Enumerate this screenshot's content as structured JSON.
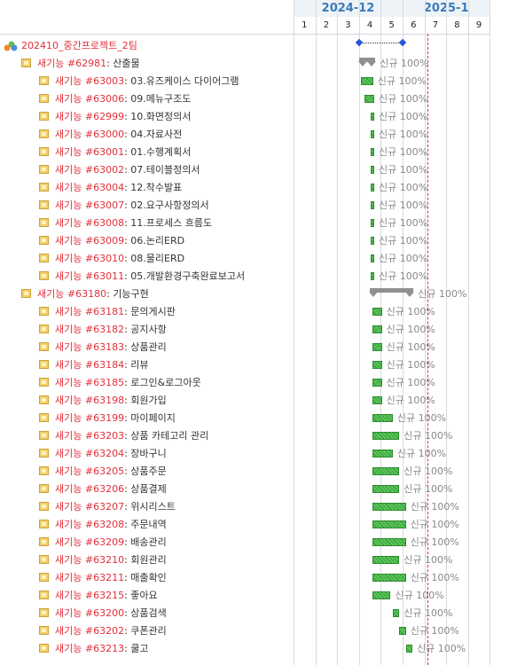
{
  "header": {
    "months": [
      {
        "label": "2024-12",
        "start_week": 1,
        "end_week": 5
      },
      {
        "label": "2025-1",
        "start_week": 6,
        "end_week": 9
      }
    ],
    "weeks": [
      "1",
      "2",
      "3",
      "4",
      "5",
      "6",
      "7",
      "8",
      "9"
    ]
  },
  "project": {
    "name": "202410_중간프로젝트_2팀",
    "start": 4.0,
    "end": 6.0
  },
  "rows": [
    {
      "kind": "group",
      "depth": 1,
      "id": "새기능 #62981",
      "name": "산출물",
      "start": 4.0,
      "end": 4.75,
      "status": "신규 100%"
    },
    {
      "kind": "task",
      "depth": 2,
      "id": "새기능 #63003",
      "name": "03.유즈케이스 다이어그램",
      "start": 4.1,
      "end": 4.65,
      "status": "신규 100%"
    },
    {
      "kind": "task",
      "depth": 2,
      "id": "새기능 #63006",
      "name": "09.메뉴구조도",
      "start": 4.25,
      "end": 4.7,
      "status": "신규 100%"
    },
    {
      "kind": "task",
      "depth": 2,
      "id": "새기능 #62999",
      "name": "10.화면정의서",
      "start": 4.55,
      "end": 4.7,
      "status": "신규 100%"
    },
    {
      "kind": "task",
      "depth": 2,
      "id": "새기능 #63000",
      "name": "04.자료사전",
      "start": 4.55,
      "end": 4.7,
      "status": "신규 100%"
    },
    {
      "kind": "task",
      "depth": 2,
      "id": "새기능 #63001",
      "name": "01.수행계획서",
      "start": 4.55,
      "end": 4.7,
      "status": "신규 100%"
    },
    {
      "kind": "task",
      "depth": 2,
      "id": "새기능 #63002",
      "name": "07.테이블정의서",
      "start": 4.55,
      "end": 4.7,
      "status": "신규 100%"
    },
    {
      "kind": "task",
      "depth": 2,
      "id": "새기능 #63004",
      "name": "12.착수발표",
      "start": 4.55,
      "end": 4.7,
      "status": "신규 100%"
    },
    {
      "kind": "task",
      "depth": 2,
      "id": "새기능 #63007",
      "name": "02.요구사항정의서",
      "start": 4.55,
      "end": 4.7,
      "status": "신규 100%"
    },
    {
      "kind": "task",
      "depth": 2,
      "id": "새기능 #63008",
      "name": "11.프로세스 흐름도",
      "start": 4.55,
      "end": 4.7,
      "status": "신규 100%"
    },
    {
      "kind": "task",
      "depth": 2,
      "id": "새기능 #63009",
      "name": "06.논리ERD",
      "start": 4.55,
      "end": 4.7,
      "status": "신규 100%"
    },
    {
      "kind": "task",
      "depth": 2,
      "id": "새기능 #63010",
      "name": "08.물리ERD",
      "start": 4.55,
      "end": 4.7,
      "status": "신규 100%"
    },
    {
      "kind": "task",
      "depth": 2,
      "id": "새기능 #63011",
      "name": "05.개발환경구축완료보고서",
      "start": 4.55,
      "end": 4.7,
      "status": "신규 100%"
    },
    {
      "kind": "group",
      "depth": 1,
      "id": "새기능 #63180",
      "name": "기능구현",
      "start": 4.5,
      "end": 6.5,
      "status": "신규 100%"
    },
    {
      "kind": "task",
      "depth": 2,
      "id": "새기능 #63181",
      "name": "문의게시판",
      "start": 4.6,
      "end": 5.05,
      "status": "신규 100%"
    },
    {
      "kind": "task",
      "depth": 2,
      "id": "새기능 #63182",
      "name": "공지사항",
      "start": 4.6,
      "end": 5.05,
      "status": "신규 100%"
    },
    {
      "kind": "task",
      "depth": 2,
      "id": "새기능 #63183",
      "name": "상품관리",
      "start": 4.6,
      "end": 5.05,
      "status": "신규 100%"
    },
    {
      "kind": "task",
      "depth": 2,
      "id": "새기능 #63184",
      "name": "리뷰",
      "start": 4.6,
      "end": 5.05,
      "status": "신규 100%"
    },
    {
      "kind": "task",
      "depth": 2,
      "id": "새기능 #63185",
      "name": "로그인&로그아웃",
      "start": 4.6,
      "end": 5.05,
      "status": "신규 100%"
    },
    {
      "kind": "task",
      "depth": 2,
      "id": "새기능 #63198",
      "name": "회원가입",
      "start": 4.6,
      "end": 5.05,
      "status": "신규 100%"
    },
    {
      "kind": "task",
      "depth": 2,
      "id": "새기능 #63199",
      "name": "마이페이지",
      "start": 4.6,
      "end": 5.55,
      "status": "신규 100%"
    },
    {
      "kind": "task",
      "depth": 2,
      "id": "새기능 #63203",
      "name": "상품 카테고리 관리",
      "start": 4.6,
      "end": 5.85,
      "status": "신규 100%"
    },
    {
      "kind": "task",
      "depth": 2,
      "id": "새기능 #63204",
      "name": "장바구니",
      "start": 4.6,
      "end": 5.55,
      "status": "신규 100%"
    },
    {
      "kind": "task",
      "depth": 2,
      "id": "새기능 #63205",
      "name": "상품주문",
      "start": 4.6,
      "end": 5.85,
      "status": "신규 100%"
    },
    {
      "kind": "task",
      "depth": 2,
      "id": "새기능 #63206",
      "name": "상품결제",
      "start": 4.6,
      "end": 5.85,
      "status": "신규 100%"
    },
    {
      "kind": "task",
      "depth": 2,
      "id": "새기능 #63207",
      "name": "위시리스트",
      "start": 4.6,
      "end": 6.15,
      "status": "신규 100%"
    },
    {
      "kind": "task",
      "depth": 2,
      "id": "새기능 #63208",
      "name": "주문내역",
      "start": 4.6,
      "end": 6.15,
      "status": "신규 100%"
    },
    {
      "kind": "task",
      "depth": 2,
      "id": "새기능 #63209",
      "name": "배송관리",
      "start": 4.6,
      "end": 6.15,
      "status": "신규 100%"
    },
    {
      "kind": "task",
      "depth": 2,
      "id": "새기능 #63210",
      "name": "회원관리",
      "start": 4.6,
      "end": 5.85,
      "status": "신규 100%"
    },
    {
      "kind": "task",
      "depth": 2,
      "id": "새기능 #63211",
      "name": "매출확인",
      "start": 4.6,
      "end": 6.15,
      "status": "신규 100%"
    },
    {
      "kind": "task",
      "depth": 2,
      "id": "새기능 #63215",
      "name": "좋아요",
      "start": 4.6,
      "end": 5.45,
      "status": "신규 100%"
    },
    {
      "kind": "task",
      "depth": 2,
      "id": "새기능 #63200",
      "name": "상품검색",
      "start": 5.55,
      "end": 5.85,
      "status": "신규 100%"
    },
    {
      "kind": "task",
      "depth": 2,
      "id": "새기능 #63202",
      "name": "쿠폰관리",
      "start": 5.85,
      "end": 6.15,
      "status": "신규 100%"
    },
    {
      "kind": "task",
      "depth": 2,
      "id": "새기능 #63213",
      "name": "쿨고",
      "start": 6.15,
      "end": 6.45,
      "status": "신규 100%"
    }
  ],
  "colors": {
    "accent": "#3a7ab8",
    "id_red": "#e0303a",
    "bar_green": "#5cc45c",
    "summary_gray": "#909090",
    "milestone_blue": "#2555d8"
  }
}
